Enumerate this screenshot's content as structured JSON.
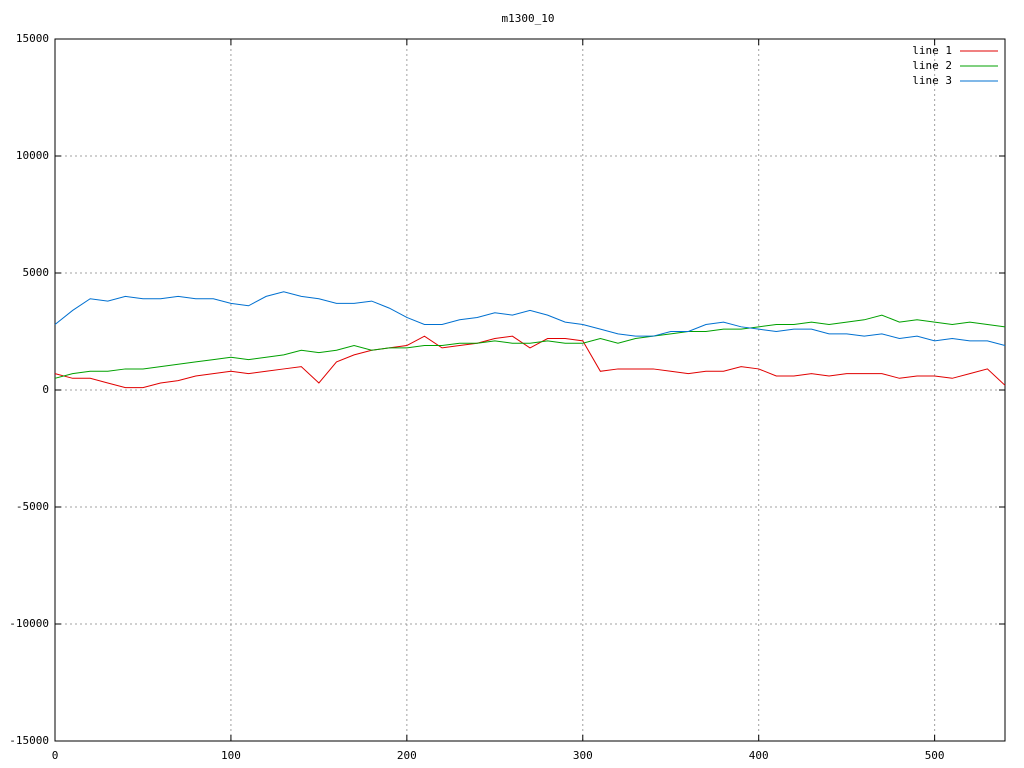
{
  "chart_data": {
    "type": "line",
    "title": "m1300_10",
    "x": [
      0,
      10,
      20,
      30,
      40,
      50,
      60,
      70,
      80,
      90,
      100,
      110,
      120,
      130,
      140,
      150,
      160,
      170,
      180,
      190,
      200,
      210,
      220,
      230,
      240,
      250,
      260,
      270,
      280,
      290,
      300,
      310,
      320,
      330,
      340,
      350,
      360,
      370,
      380,
      390,
      400,
      410,
      420,
      430,
      440,
      450,
      460,
      470,
      480,
      490,
      500,
      510,
      520,
      530,
      540
    ],
    "series": [
      {
        "name": "line 1",
        "color": "#e00000",
        "values": [
          700,
          500,
          500,
          300,
          100,
          100,
          300,
          400,
          600,
          700,
          800,
          700,
          800,
          900,
          1000,
          300,
          1200,
          1500,
          1700,
          1800,
          1900,
          2300,
          1800,
          1900,
          2000,
          2200,
          2300,
          1800,
          2200,
          2200,
          2100,
          800,
          900,
          900,
          900,
          800,
          700,
          800,
          800,
          1000,
          900,
          600,
          600,
          700,
          600,
          700,
          700,
          700,
          500,
          600,
          600,
          500,
          700,
          900,
          200
        ]
      },
      {
        "name": "line 2",
        "color": "#00a000",
        "values": [
          500,
          700,
          800,
          800,
          900,
          900,
          1000,
          1100,
          1200,
          1300,
          1400,
          1300,
          1400,
          1500,
          1700,
          1600,
          1700,
          1900,
          1700,
          1800,
          1800,
          1900,
          1900,
          2000,
          2000,
          2100,
          2000,
          2000,
          2100,
          2000,
          2000,
          2200,
          2000,
          2200,
          2300,
          2400,
          2500,
          2500,
          2600,
          2600,
          2700,
          2800,
          2800,
          2900,
          2800,
          2900,
          3000,
          3200,
          2900,
          3000,
          2900,
          2800,
          2900,
          2800,
          2700
        ]
      },
      {
        "name": "line 3",
        "color": "#0070d0",
        "values": [
          2800,
          3400,
          3900,
          3800,
          4000,
          3900,
          3900,
          4000,
          3900,
          3900,
          3700,
          3600,
          4000,
          4200,
          4000,
          3900,
          3700,
          3700,
          3800,
          3500,
          3100,
          2800,
          2800,
          3000,
          3100,
          3300,
          3200,
          3400,
          3200,
          2900,
          2800,
          2600,
          2400,
          2300,
          2300,
          2500,
          2500,
          2800,
          2900,
          2700,
          2600,
          2500,
          2600,
          2600,
          2400,
          2400,
          2300,
          2400,
          2200,
          2300,
          2100,
          2200,
          2100,
          2100,
          1900
        ]
      }
    ],
    "xlim": [
      0,
      540
    ],
    "ylim": [
      -15000,
      15000
    ],
    "xticks": [
      0,
      100,
      200,
      300,
      400,
      500
    ],
    "yticks": [
      -15000,
      -10000,
      -5000,
      0,
      5000,
      10000,
      15000
    ],
    "grid": true,
    "legend": "top-right"
  }
}
